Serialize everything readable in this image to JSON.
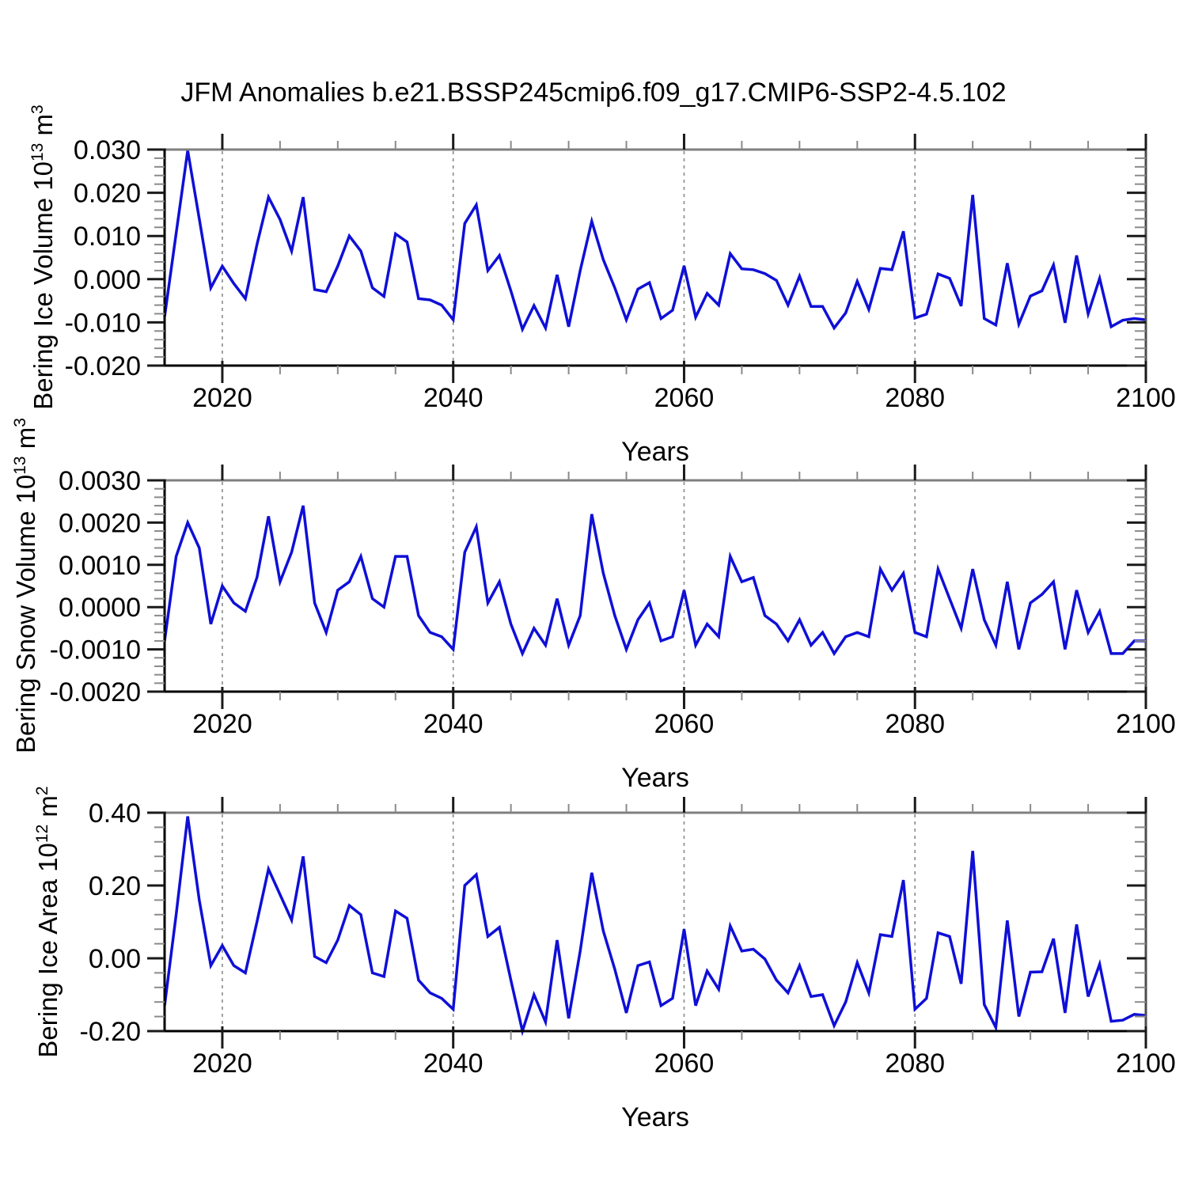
{
  "title": "JFM Anomalies b.e21.BSSP245cmip6.f09_g17.CMIP6-SSP2-4.5.102",
  "colors": {
    "line": "#0f0fd8",
    "grid": "#8a8a8a",
    "axis": "#000000",
    "axis_top": "#7f7f7f",
    "axis_right": "#4d4d4d",
    "minor_tick": "#8a8a8a",
    "major_tick": "#1a1a1a",
    "text": "#000000"
  },
  "chart_data": [
    {
      "name": "bering-ice-volume",
      "type": "line",
      "xlabel": "Years",
      "ylabel": {
        "p1": "Bering Ice Volume 10",
        "s1": "13",
        "p2": " m",
        "s2": "3"
      },
      "x": {
        "start": 2015,
        "end": 2100,
        "step": 1
      },
      "xlim": [
        2015,
        2100
      ],
      "ylim": [
        -0.02,
        0.03
      ],
      "xticks": [
        {
          "v": 2020,
          "label": "2020"
        },
        {
          "v": 2040,
          "label": "2040"
        },
        {
          "v": 2060,
          "label": "2060"
        },
        {
          "v": 2080,
          "label": "2080"
        },
        {
          "v": 2100,
          "label": "2100"
        }
      ],
      "yticks": [
        {
          "v": 0.03,
          "label": "0.030"
        },
        {
          "v": 0.02,
          "label": "0.020"
        },
        {
          "v": 0.01,
          "label": "0.010"
        },
        {
          "v": 0.0,
          "label": "0.000"
        },
        {
          "v": -0.01,
          "label": "-0.010"
        },
        {
          "v": -0.02,
          "label": "-0.020"
        }
      ],
      "x_minor_step": 5,
      "y_minor_step": 0.002,
      "grid_x": [
        2020,
        2040,
        2060,
        2080
      ],
      "grid_on": true,
      "legend": "none",
      "values": [
        -0.0087,
        0.0106,
        0.0298,
        0.014,
        -0.002,
        0.003,
        -0.001,
        -0.0045,
        0.008,
        0.019,
        0.0138,
        0.0065,
        0.019,
        -0.0024,
        -0.0029,
        0.003,
        0.01,
        0.0065,
        -0.002,
        -0.004,
        0.0105,
        0.0086,
        -0.0045,
        -0.0048,
        -0.006,
        -0.0094,
        0.0129,
        0.0172,
        0.002,
        0.0055,
        -0.0027,
        -0.0116,
        -0.0061,
        -0.0113,
        0.001,
        -0.011,
        0.002,
        0.0134,
        0.0045,
        -0.002,
        -0.0094,
        -0.0023,
        -0.0008,
        -0.0091,
        -0.0072,
        0.0031,
        -0.0088,
        -0.0033,
        -0.006,
        0.0059,
        0.0024,
        0.0022,
        0.0013,
        -0.0003,
        -0.006,
        0.0007,
        -0.0063,
        -0.0063,
        -0.0113,
        -0.0078,
        -0.0005,
        -0.007,
        0.0025,
        0.0022,
        0.0111,
        -0.009,
        -0.0081,
        0.0012,
        0.0002,
        -0.0062,
        0.0195,
        -0.0091,
        -0.0106,
        0.0037,
        -0.0104,
        -0.0039,
        -0.0027,
        0.0033,
        -0.0101,
        0.0055,
        -0.008,
        0.0002,
        -0.011,
        -0.0095,
        -0.0091,
        -0.0094
      ]
    },
    {
      "name": "bering-snow-volume",
      "type": "line",
      "xlabel": "Years",
      "ylabel": {
        "p1": "Bering Snow Volume 10",
        "s1": "13",
        "p2": " m",
        "s2": "3"
      },
      "x": {
        "start": 2015,
        "end": 2100,
        "step": 1
      },
      "xlim": [
        2015,
        2100
      ],
      "ylim": [
        -0.002,
        0.003
      ],
      "xticks": [
        {
          "v": 2020,
          "label": "2020"
        },
        {
          "v": 2040,
          "label": "2040"
        },
        {
          "v": 2060,
          "label": "2060"
        },
        {
          "v": 2080,
          "label": "2080"
        },
        {
          "v": 2100,
          "label": "2100"
        }
      ],
      "yticks": [
        {
          "v": 0.003,
          "label": "0.0030"
        },
        {
          "v": 0.002,
          "label": "0.0020"
        },
        {
          "v": 0.001,
          "label": "0.0010"
        },
        {
          "v": 0.0,
          "label": "0.0000"
        },
        {
          "v": -0.001,
          "label": "-0.0010"
        },
        {
          "v": -0.002,
          "label": "-0.0020"
        }
      ],
      "x_minor_step": 5,
      "y_minor_step": 0.0002,
      "grid_x": [
        2020,
        2040,
        2060,
        2080
      ],
      "grid_on": true,
      "legend": "none",
      "values": [
        -0.0008,
        0.0012,
        0.002,
        0.0014,
        -0.0004,
        0.0005,
        0.0001,
        -0.0001,
        0.0007,
        0.00215,
        0.0006,
        0.0013,
        0.0024,
        0.0001,
        -0.0006,
        0.0004,
        0.0006,
        0.0012,
        0.0002,
        0.0,
        0.0012,
        0.0012,
        -0.0002,
        -0.0006,
        -0.0007,
        -0.001,
        0.0013,
        0.0019,
        0.0001,
        0.0006,
        -0.0004,
        -0.0011,
        -0.0005,
        -0.0009,
        0.0002,
        -0.0009,
        -0.0002,
        0.0022,
        0.0008,
        -0.0002,
        -0.001,
        -0.0003,
        0.0001,
        -0.0008,
        -0.0007,
        0.0004,
        -0.0009,
        -0.0004,
        -0.0007,
        0.0012,
        0.0006,
        0.0007,
        -0.0002,
        -0.0004,
        -0.0008,
        -0.0003,
        -0.0009,
        -0.0006,
        -0.0011,
        -0.0007,
        -0.0006,
        -0.0007,
        0.0009,
        0.0004,
        0.0008,
        -0.0006,
        -0.0007,
        0.0009,
        0.0002,
        -0.0005,
        0.0009,
        -0.0003,
        -0.0009,
        0.0006,
        -0.001,
        0.0001,
        0.0003,
        0.0006,
        -0.001,
        0.0004,
        -0.0006,
        -0.0001,
        -0.0011,
        -0.0011,
        -0.0008,
        -0.0008
      ]
    },
    {
      "name": "bering-ice-area",
      "type": "line",
      "xlabel": "Years",
      "ylabel": {
        "p1": "Bering Ice Area 10",
        "s1": "12",
        "p2": " m",
        "s2": "2"
      },
      "x": {
        "start": 2015,
        "end": 2100,
        "step": 1
      },
      "xlim": [
        2015,
        2100
      ],
      "ylim": [
        -0.2,
        0.4
      ],
      "xticks": [
        {
          "v": 2020,
          "label": "2020"
        },
        {
          "v": 2040,
          "label": "2040"
        },
        {
          "v": 2060,
          "label": "2060"
        },
        {
          "v": 2080,
          "label": "2080"
        },
        {
          "v": 2100,
          "label": "2100"
        }
      ],
      "yticks": [
        {
          "v": 0.4,
          "label": "0.40"
        },
        {
          "v": 0.2,
          "label": "0.20"
        },
        {
          "v": 0.0,
          "label": "0.00"
        },
        {
          "v": -0.2,
          "label": "-0.20"
        }
      ],
      "x_minor_step": 5,
      "y_minor_step": 0.04,
      "grid_x": [
        2020,
        2040,
        2060,
        2080
      ],
      "grid_on": true,
      "legend": "none",
      "values": [
        -0.13,
        0.12,
        0.39,
        0.16,
        -0.02,
        0.035,
        -0.02,
        -0.04,
        0.1,
        0.245,
        0.175,
        0.105,
        0.28,
        0.005,
        -0.012,
        0.05,
        0.145,
        0.12,
        -0.04,
        -0.05,
        0.13,
        0.11,
        -0.06,
        -0.095,
        -0.11,
        -0.14,
        0.2,
        0.23,
        0.06,
        0.085,
        -0.06,
        -0.2,
        -0.1,
        -0.175,
        0.05,
        -0.165,
        0.02,
        0.235,
        0.075,
        -0.03,
        -0.15,
        -0.02,
        -0.01,
        -0.13,
        -0.11,
        0.08,
        -0.13,
        -0.035,
        -0.085,
        0.089,
        0.02,
        0.025,
        -0.002,
        -0.06,
        -0.095,
        -0.02,
        -0.105,
        -0.1,
        -0.185,
        -0.12,
        -0.012,
        -0.095,
        0.065,
        0.06,
        0.215,
        -0.14,
        -0.11,
        0.07,
        0.06,
        -0.07,
        0.295,
        -0.127,
        -0.19,
        0.104,
        -0.16,
        -0.038,
        -0.037,
        0.054,
        -0.15,
        0.093,
        -0.105,
        -0.016,
        -0.173,
        -0.17,
        -0.154,
        -0.157
      ]
    }
  ]
}
